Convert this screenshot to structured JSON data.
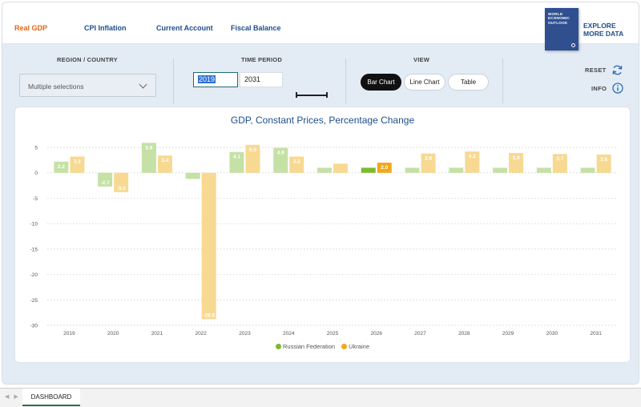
{
  "nav": {
    "tabs": [
      {
        "label": "Real GDP",
        "active": true
      },
      {
        "label": "CPI Inflation",
        "active": false
      },
      {
        "label": "Current Account",
        "active": false
      },
      {
        "label": "Fiscal Balance",
        "active": false
      }
    ],
    "weo_cover_lines": [
      "WORLD",
      "ECONOMIC",
      "OUTLOOK"
    ],
    "explore_lines": [
      "EXPLORE",
      "MORE DATA"
    ]
  },
  "controls": {
    "region_label": "REGION / COUNTRY",
    "region_value": "Multiple selections",
    "time_label": "TIME PERIOD",
    "start_year": "2019",
    "end_year": "2031",
    "view_label": "VIEW",
    "view_options": [
      "Bar Chart",
      "Line Chart",
      "Table"
    ],
    "active_view": "Bar Chart",
    "reset_label": "RESET",
    "info_label": "INFO"
  },
  "chart_data": {
    "type": "bar",
    "title": "GDP, Constant Prices, Percentage Change",
    "xlabel": "",
    "ylabel": "",
    "categories": [
      "2019",
      "2020",
      "2021",
      "2022",
      "2023",
      "2024",
      "2025",
      "2026",
      "2027",
      "2028",
      "2029",
      "2030",
      "2031"
    ],
    "ylim": [
      -30,
      5
    ],
    "yticks": [
      5,
      0,
      -5,
      -10,
      -15,
      -20,
      -25,
      -30
    ],
    "highlight_category": "2026",
    "legend_position": "bottom",
    "grid": true,
    "series": [
      {
        "name": "Russian Federation",
        "color": "#c5e1a5",
        "highlight_color": "#7cbb2f",
        "values": [
          2.2,
          -2.7,
          5.9,
          -1.2,
          4.1,
          4.9,
          1.0,
          1.0,
          1.0,
          1.0,
          1.0,
          1.0,
          1.0
        ],
        "labels": [
          "2.2",
          "-2.7",
          "5.9",
          "",
          "4.1",
          "4.9",
          "",
          "",
          "",
          "",
          "",
          "",
          ""
        ]
      },
      {
        "name": "Ukraine",
        "color": "#f7d992",
        "highlight_color": "#f0a81c",
        "values": [
          3.2,
          -3.8,
          3.4,
          -28.8,
          5.5,
          3.2,
          1.8,
          2.0,
          3.8,
          4.2,
          3.9,
          3.7,
          3.6
        ],
        "labels": [
          "3.2",
          "-3.8",
          "3.4",
          "-28.8",
          "5.5",
          "3.2",
          "",
          "2.0",
          "3.8",
          "4.2",
          "3.9",
          "3.7",
          "3.6"
        ]
      }
    ]
  },
  "bottom": {
    "sheet_tab": "DASHBOARD"
  }
}
